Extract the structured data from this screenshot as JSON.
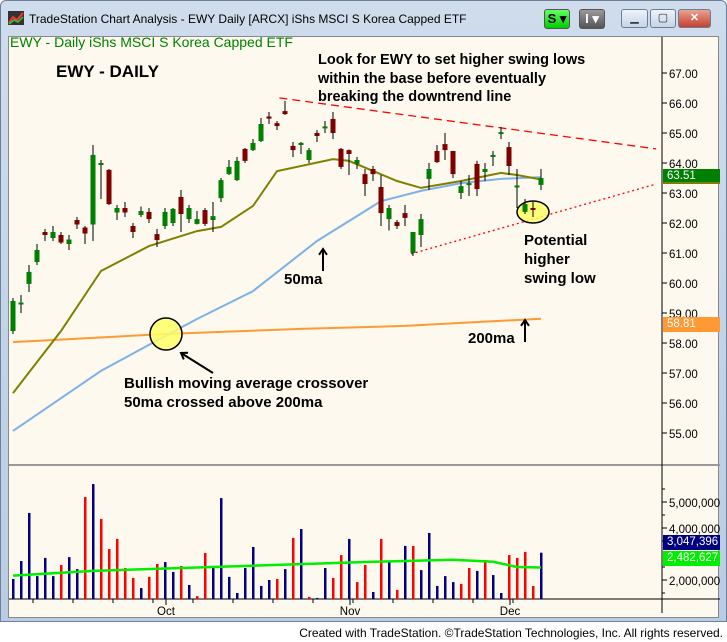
{
  "window": {
    "title": "TradeStation Chart Analysis - EWY Daily [ARCX] iShs MSCI S Korea Capped ETF",
    "btn_s": "S ▾",
    "btn_i": "I ▾",
    "min": "▁",
    "max": "▢",
    "close": "✕"
  },
  "symbol_header": "EWY - Daily  iShs MSCI S Korea Capped ETF",
  "annotations": {
    "title": "EWY - DAILY",
    "note": [
      "Look for EWY to set higher swing lows",
      "within the base before eventually",
      "breaking the downtrend line"
    ],
    "ma50": "50ma",
    "ma200": "200ma",
    "swing": [
      "Potential",
      "higher",
      "swing low"
    ],
    "crossover": [
      "Bullish moving average crossover",
      "50ma crossed above 200ma"
    ]
  },
  "footer": "Created with TradeStation. ©TradeStation Technologies, Inc. All rights reserved.",
  "colors": {
    "up": "#008000",
    "down": "#800000",
    "vol_up": "#000080",
    "vol_down": "#ff0000",
    "ma20": "#808000",
    "ma50": "#7fb0e8",
    "ma200": "#ff9933",
    "vol_avg": "#00ee00",
    "trend": "#ff0000"
  },
  "chart_data": {
    "type": "candlestick",
    "price_axis": {
      "ticks": [
        "67.00",
        "66.00",
        "65.00",
        "64.00",
        "63.00",
        "62.00",
        "61.00",
        "60.00",
        "59.00",
        "58.00",
        "57.00",
        "56.00",
        "55.00"
      ],
      "range": [
        54,
        67.9
      ]
    },
    "last_price": "63.51",
    "ma200_last": "58.81",
    "volume_axis": {
      "ticks": [
        "5,000,000",
        "4,000,000",
        "2,000,000"
      ]
    },
    "last_volume": "3,047,396",
    "vol_avg_last": "2,482,627",
    "months": [
      {
        "label": "Oct",
        "bar": 19
      },
      {
        "label": "Nov",
        "bar": 42
      },
      {
        "label": "Dec",
        "bar": 62
      }
    ],
    "ohlc": [
      [
        58.4,
        59.5,
        58.3,
        59.4
      ],
      [
        59.3,
        59.6,
        59.0,
        59.35
      ],
      [
        59.97,
        60.6,
        59.7,
        60.37
      ],
      [
        60.7,
        61.3,
        60.6,
        61.1
      ],
      [
        61.7,
        61.8,
        61.4,
        61.6
      ],
      [
        61.5,
        61.9,
        61.4,
        61.7
      ],
      [
        61.6,
        61.7,
        61.3,
        61.35
      ],
      [
        61.3,
        61.6,
        61.1,
        61.45
      ],
      [
        62.1,
        62.2,
        61.8,
        61.95
      ],
      [
        61.85,
        61.9,
        61.3,
        61.65
      ],
      [
        61.95,
        64.6,
        61.4,
        64.27
      ],
      [
        63.95,
        64.1,
        62.8,
        64.0
      ],
      [
        63.77,
        63.8,
        62.6,
        62.63
      ],
      [
        62.35,
        62.6,
        62.1,
        62.5
      ],
      [
        62.5,
        62.7,
        62.2,
        62.35
      ],
      [
        61.9,
        62.0,
        61.5,
        61.7
      ],
      [
        62.27,
        62.55,
        62.2,
        62.4
      ],
      [
        62.37,
        62.5,
        62.0,
        62.13
      ],
      [
        61.63,
        61.8,
        61.2,
        61.43
      ],
      [
        61.9,
        62.5,
        61.8,
        62.37
      ],
      [
        62.0,
        62.5,
        61.9,
        62.47
      ],
      [
        62.87,
        63.1,
        61.7,
        62.3
      ],
      [
        62.13,
        62.6,
        62.0,
        62.5
      ],
      [
        61.97,
        62.4,
        61.95,
        62.13
      ],
      [
        62.43,
        62.5,
        61.9,
        61.97
      ],
      [
        62.1,
        62.7,
        61.7,
        62.23
      ],
      [
        62.83,
        63.5,
        62.7,
        63.43
      ],
      [
        63.63,
        64.1,
        63.6,
        63.87
      ],
      [
        63.43,
        64.2,
        63.4,
        64.07
      ],
      [
        64.47,
        64.5,
        64.0,
        64.07
      ],
      [
        64.43,
        64.8,
        64.4,
        64.67
      ],
      [
        64.73,
        65.5,
        64.7,
        65.3
      ],
      [
        65.55,
        65.7,
        65.3,
        65.48
      ],
      [
        65.33,
        65.4,
        65.1,
        65.23
      ],
      [
        65.73,
        66.07,
        65.6,
        65.63
      ],
      [
        64.57,
        64.7,
        64.2,
        64.43
      ],
      [
        64.6,
        64.7,
        64.3,
        64.67
      ],
      [
        64.1,
        64.5,
        64.0,
        64.43
      ],
      [
        65.0,
        65.1,
        64.7,
        64.9
      ],
      [
        65.18,
        65.4,
        65.0,
        65.22
      ],
      [
        65.47,
        65.7,
        64.8,
        65.0
      ],
      [
        64.47,
        64.5,
        63.8,
        63.87
      ],
      [
        64.43,
        64.45,
        63.6,
        64.3
      ],
      [
        63.97,
        64.2,
        63.8,
        64.1
      ],
      [
        63.63,
        63.8,
        62.9,
        63.3
      ],
      [
        63.8,
        63.9,
        63.4,
        63.63
      ],
      [
        63.2,
        63.6,
        61.9,
        62.33
      ],
      [
        62.13,
        62.6,
        61.75,
        62.5
      ],
      [
        62.03,
        62.1,
        61.8,
        61.9
      ],
      [
        62.33,
        62.6,
        61.9,
        62.17
      ],
      [
        61.0,
        61.7,
        60.9,
        61.7
      ],
      [
        61.6,
        62.3,
        61.2,
        62.13
      ],
      [
        63.47,
        64.0,
        63.1,
        63.8
      ],
      [
        64.4,
        64.6,
        64.0,
        64.03
      ],
      [
        64.63,
        65.0,
        64.1,
        64.43
      ],
      [
        64.4,
        64.4,
        63.5,
        63.63
      ],
      [
        63.0,
        63.4,
        62.8,
        63.23
      ],
      [
        63.27,
        63.6,
        62.9,
        63.33
      ],
      [
        63.97,
        64.07,
        62.9,
        63.13
      ],
      [
        63.7,
        64.0,
        63.4,
        63.8
      ],
      [
        64.2,
        64.4,
        63.9,
        64.27
      ],
      [
        64.97,
        65.2,
        64.8,
        65.03
      ],
      [
        64.53,
        64.7,
        63.6,
        63.9
      ],
      [
        63.2,
        63.8,
        62.5,
        63.25
      ],
      [
        62.37,
        62.8,
        62.3,
        62.63
      ],
      [
        62.5,
        62.7,
        62.2,
        62.45
      ],
      [
        63.27,
        63.8,
        63.1,
        63.5
      ]
    ],
    "volume_millions": [
      2.04,
      2.73,
      4.58,
      2.15,
      2.85,
      2.15,
      2.58,
      2.88,
      2.42,
      5.19,
      5.69,
      4.35,
      3.19,
      3.58,
      2.46,
      2.08,
      1.69,
      2.12,
      2.62,
      2.69,
      2.31,
      2.54,
      1.81,
      1.38,
      3.04,
      2.54,
      5.15,
      2.12,
      1.5,
      2.46,
      3.27,
      1.77,
      2.0,
      2.04,
      2.42,
      3.62,
      3.96,
      1.35,
      1.31,
      2.46,
      2.08,
      2.96,
      3.58,
      1.92,
      2.58,
      1.54,
      3.58,
      2.73,
      1.62,
      3.31,
      3.31,
      2.38,
      3.81,
      1.77,
      2.15,
      1.92,
      1.85,
      2.46,
      2.35,
      2.77,
      2.19,
      1.5,
      2.96,
      2.85,
      3.08,
      1.77,
      3.05
    ],
    "volume_down": [
      6,
      9,
      11,
      12,
      13,
      14,
      15,
      17,
      18,
      21,
      23,
      24,
      33,
      35,
      37,
      40,
      41,
      43,
      44,
      46,
      48,
      50,
      56,
      57,
      59,
      62,
      63,
      64,
      65
    ],
    "ma20": [
      [
        0,
        56.33
      ],
      [
        6,
        58.4
      ],
      [
        11,
        60.4
      ],
      [
        17,
        61.23
      ],
      [
        23,
        61.73
      ],
      [
        26,
        61.87
      ],
      [
        30,
        62.57
      ],
      [
        33,
        63.73
      ],
      [
        40,
        64.13
      ],
      [
        42,
        64.07
      ],
      [
        48,
        63.4
      ],
      [
        51,
        63.17
      ],
      [
        56,
        63.4
      ],
      [
        61,
        63.67
      ],
      [
        63,
        63.6
      ],
      [
        66,
        63.45
      ]
    ],
    "ma50": [
      [
        0,
        55.07
      ],
      [
        11,
        57.07
      ],
      [
        19,
        58.23
      ],
      [
        23,
        58.8
      ],
      [
        30,
        59.73
      ],
      [
        38,
        61.4
      ],
      [
        46,
        62.73
      ],
      [
        51,
        63.07
      ],
      [
        56,
        63.33
      ],
      [
        61,
        63.47
      ],
      [
        66,
        63.53
      ]
    ],
    "ma200": [
      [
        0,
        58.03
      ],
      [
        19,
        58.3
      ],
      [
        36,
        58.47
      ],
      [
        49,
        58.57
      ],
      [
        66,
        58.81
      ]
    ],
    "vol_avg": [
      [
        0,
        2.17
      ],
      [
        10,
        2.35
      ],
      [
        25,
        2.5
      ],
      [
        35,
        2.6
      ],
      [
        45,
        2.7
      ],
      [
        55,
        2.78
      ],
      [
        60,
        2.7
      ],
      [
        63,
        2.5
      ],
      [
        66,
        2.48
      ]
    ],
    "downtrend": [
      [
        33.3,
        66.17
      ],
      [
        80.4,
        64.47
      ]
    ],
    "uptrend": [
      [
        49.75,
        60.97
      ],
      [
        80.4,
        63.3
      ]
    ]
  }
}
